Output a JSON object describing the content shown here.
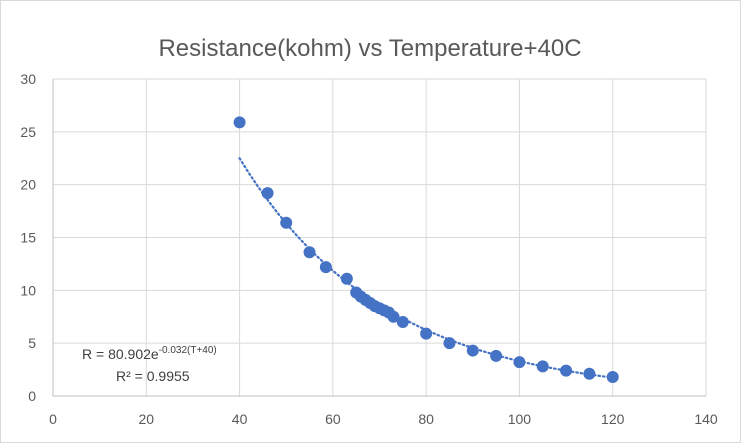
{
  "chart_data": {
    "type": "scatter",
    "title": "Resistance(kohm) vs Temperature+40C",
    "xlabel": "",
    "ylabel": "",
    "xlim": [
      0,
      140
    ],
    "ylim": [
      0,
      30
    ],
    "x_ticks": [
      0,
      20,
      40,
      60,
      80,
      100,
      120,
      140
    ],
    "y_ticks": [
      0,
      5,
      10,
      15,
      20,
      25,
      30
    ],
    "grid": true,
    "legend": "none",
    "series": [
      {
        "color": "#4472c4",
        "points": [
          {
            "x": 40,
            "y": 25.9
          },
          {
            "x": 46,
            "y": 19.2
          },
          {
            "x": 50,
            "y": 16.4
          },
          {
            "x": 55,
            "y": 13.6
          },
          {
            "x": 58.5,
            "y": 12.2
          },
          {
            "x": 63,
            "y": 11.1
          },
          {
            "x": 65,
            "y": 9.8
          },
          {
            "x": 66,
            "y": 9.4
          },
          {
            "x": 67,
            "y": 9.1
          },
          {
            "x": 68,
            "y": 8.8
          },
          {
            "x": 69,
            "y": 8.5
          },
          {
            "x": 70,
            "y": 8.3
          },
          {
            "x": 71,
            "y": 8.1
          },
          {
            "x": 72,
            "y": 7.9
          },
          {
            "x": 73,
            "y": 7.5
          },
          {
            "x": 75,
            "y": 7.0
          },
          {
            "x": 80,
            "y": 5.9
          },
          {
            "x": 85,
            "y": 5.0
          },
          {
            "x": 90,
            "y": 4.3
          },
          {
            "x": 95,
            "y": 3.8
          },
          {
            "x": 100,
            "y": 3.2
          },
          {
            "x": 105,
            "y": 2.8
          },
          {
            "x": 110,
            "y": 2.4
          },
          {
            "x": 115,
            "y": 2.1
          },
          {
            "x": 120,
            "y": 1.8
          }
        ]
      }
    ],
    "trendline": {
      "type": "exponential",
      "a": 80.902,
      "b": -0.032,
      "x_start": 40,
      "x_end": 120,
      "color": "#4472c4",
      "equation_main": "R = 80.902e",
      "equation_exponent": "-0.032(T+40)",
      "r_squared": "R² = 0.9955"
    }
  }
}
